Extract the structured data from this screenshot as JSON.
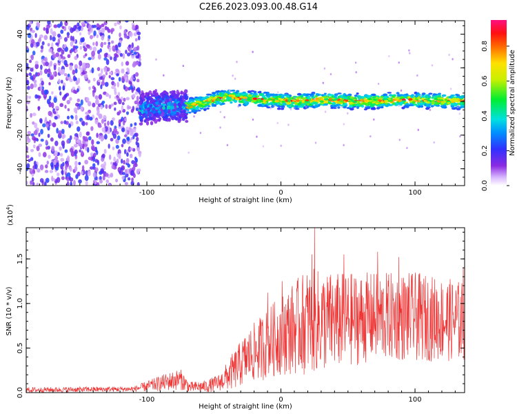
{
  "title": "C2E6.2023.093.00.48.G14",
  "chart_data": [
    {
      "type": "heatmap",
      "xlabel": "Height of straight line (km)",
      "ylabel": "Frequency (Hz)",
      "xlim": [
        -190,
        137
      ],
      "ylim": [
        -50,
        48
      ],
      "x_ticks": [
        {
          "value": -100,
          "label": "-100"
        },
        {
          "value": 0,
          "label": "0"
        },
        {
          "value": 100,
          "label": "100"
        }
      ],
      "y_ticks": [
        {
          "value": -40,
          "label": "-40"
        },
        {
          "value": -20,
          "label": "-20"
        },
        {
          "value": 0,
          "label": "0"
        },
        {
          "value": 20,
          "label": "20"
        },
        {
          "value": 40,
          "label": "40"
        }
      ],
      "colorbar": {
        "label": "Normalized spectral amplitude",
        "range": [
          0,
          0.95
        ],
        "ticks": [
          {
            "value": 0.0,
            "label": "0.0"
          },
          {
            "value": 0.2,
            "label": "0.2"
          },
          {
            "value": 0.4,
            "label": "0.4"
          },
          {
            "value": 0.6,
            "label": "0.6"
          },
          {
            "value": 0.8,
            "label": "0.8"
          }
        ],
        "colormap": "rainbow"
      },
      "regions": [
        {
          "x_range": [
            -190,
            -105
          ],
          "freq_range": [
            -50,
            48
          ],
          "amplitude": [
            0.05,
            0.25
          ]
        },
        {
          "x_range": [
            -105,
            -70
          ],
          "freq_range": [
            -10,
            10
          ],
          "amplitude": [
            0.1,
            0.45
          ]
        },
        {
          "x_range": [
            -70,
            137
          ],
          "freq_range": [
            -4,
            6
          ],
          "amplitude": [
            0.2,
            0.95
          ]
        }
      ],
      "ridge": [
        {
          "x": -110,
          "f": -5
        },
        {
          "x": -90,
          "f": -3
        },
        {
          "x": -70,
          "f": -3
        },
        {
          "x": -50,
          "f": 1
        },
        {
          "x": -40,
          "f": 3
        },
        {
          "x": -30,
          "f": 2
        },
        {
          "x": -10,
          "f": 1
        },
        {
          "x": 10,
          "f": 0
        },
        {
          "x": 30,
          "f": 1
        },
        {
          "x": 60,
          "f": 0
        },
        {
          "x": 90,
          "f": 1
        },
        {
          "x": 137,
          "f": 0
        }
      ]
    },
    {
      "type": "line",
      "xlabel": "Height of straight line (km)",
      "ylabel": "SNR (10 * v/v)",
      "y_multiplier": "(x10",
      "y_multiplier_exp": "4",
      "y_multiplier_close": ")",
      "xlim": [
        -190,
        137
      ],
      "ylim": [
        0,
        1.85
      ],
      "x_ticks": [
        {
          "value": -100,
          "label": "-100"
        },
        {
          "value": 0,
          "label": "0"
        },
        {
          "value": 100,
          "label": "100"
        }
      ],
      "y_ticks": [
        {
          "value": 0.0,
          "label": "0.0"
        },
        {
          "value": 0.5,
          "label": "0.5"
        },
        {
          "value": 1.0,
          "label": "1.0"
        },
        {
          "value": 1.5,
          "label": "1.5"
        }
      ],
      "color": "#ee3333",
      "envelope": [
        {
          "x": -190,
          "mean": 0.03,
          "amp": 0.03
        },
        {
          "x": -110,
          "mean": 0.04,
          "amp": 0.03
        },
        {
          "x": -100,
          "mean": 0.07,
          "amp": 0.06
        },
        {
          "x": -85,
          "mean": 0.12,
          "amp": 0.1
        },
        {
          "x": -75,
          "mean": 0.15,
          "amp": 0.12
        },
        {
          "x": -68,
          "mean": 0.06,
          "amp": 0.06
        },
        {
          "x": -55,
          "mean": 0.07,
          "amp": 0.07
        },
        {
          "x": -45,
          "mean": 0.12,
          "amp": 0.1
        },
        {
          "x": -35,
          "mean": 0.25,
          "amp": 0.22
        },
        {
          "x": -25,
          "mean": 0.4,
          "amp": 0.3
        },
        {
          "x": -10,
          "mean": 0.55,
          "amp": 0.4
        },
        {
          "x": 0,
          "mean": 0.65,
          "amp": 0.45
        },
        {
          "x": 20,
          "mean": 0.8,
          "amp": 0.6
        },
        {
          "x": 40,
          "mean": 0.8,
          "amp": 0.55
        },
        {
          "x": 70,
          "mean": 0.85,
          "amp": 0.5
        },
        {
          "x": 100,
          "mean": 0.85,
          "amp": 0.5
        },
        {
          "x": 137,
          "mean": 0.8,
          "amp": 0.45
        }
      ],
      "peaks": [
        {
          "x": 25,
          "y": 1.85
        },
        {
          "x": 23,
          "y": 1.55
        },
        {
          "x": 47,
          "y": 1.55
        },
        {
          "x": 72,
          "y": 1.58
        },
        {
          "x": 88,
          "y": 1.52
        },
        {
          "x": 136,
          "y": 1.4
        },
        {
          "x": 1,
          "y": 1.25
        },
        {
          "x": -10,
          "y": 1.12
        }
      ]
    }
  ]
}
